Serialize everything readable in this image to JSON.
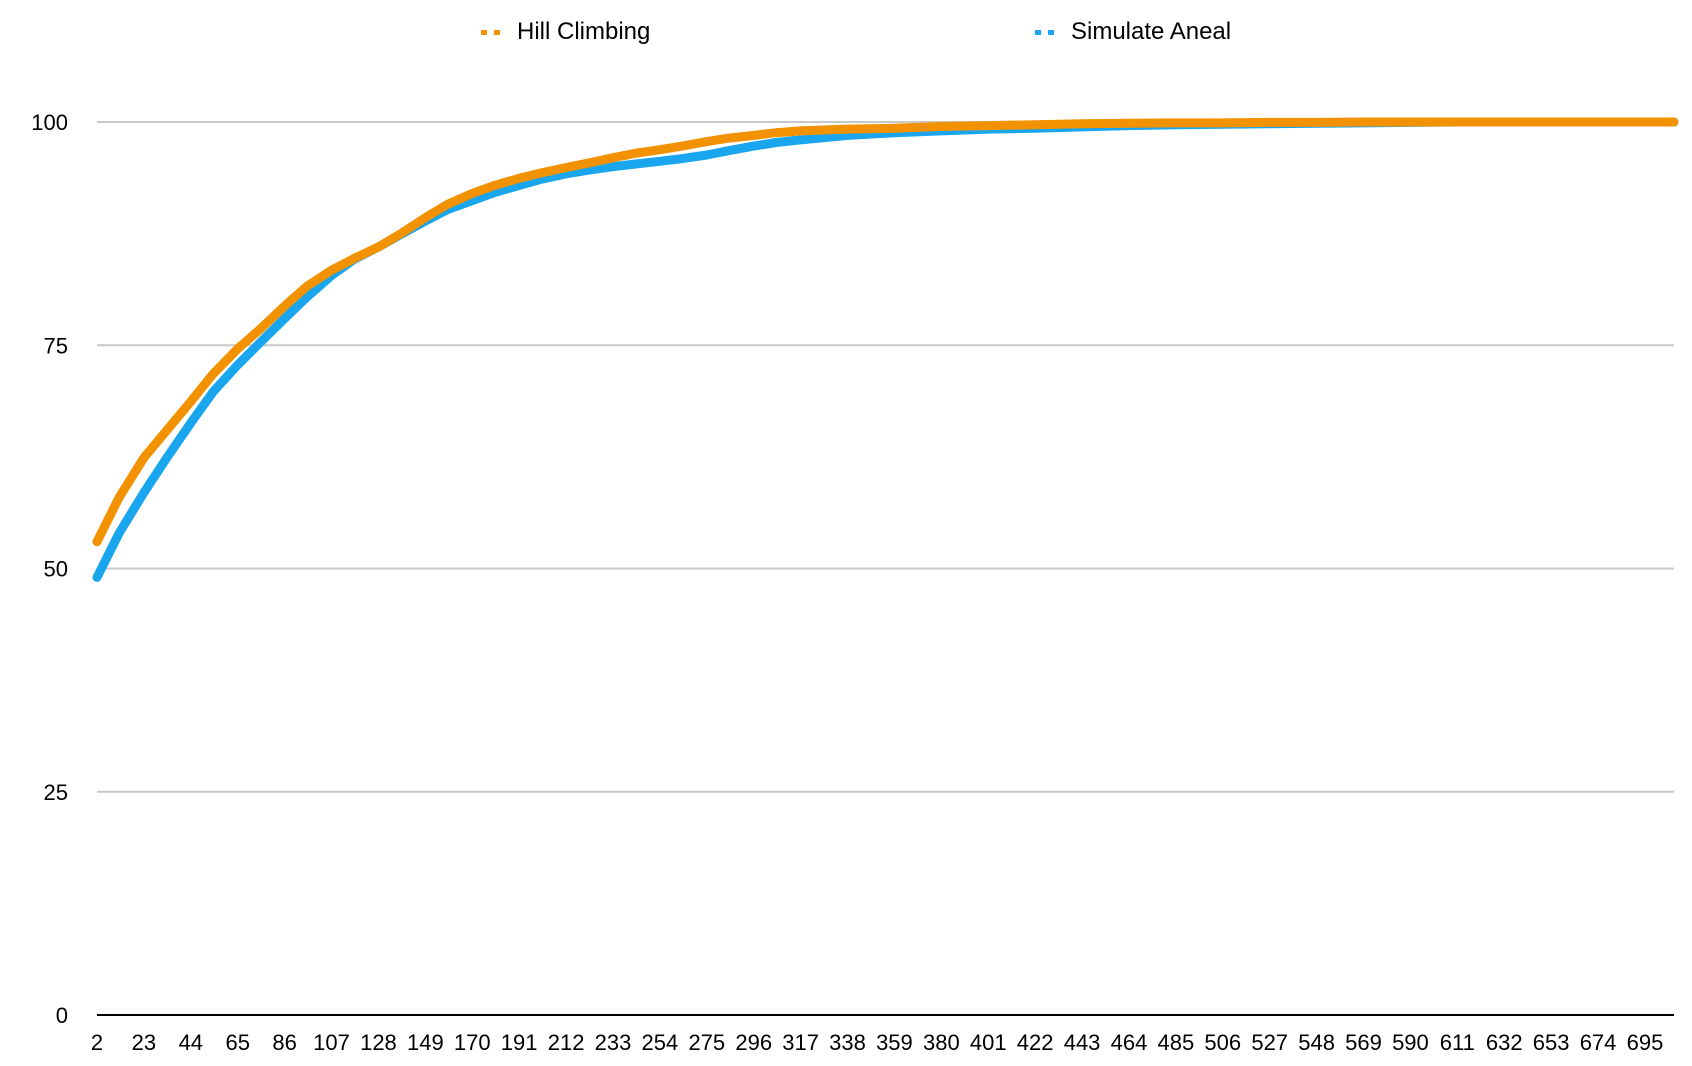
{
  "chart_data": {
    "type": "line",
    "title": "",
    "xlabel": "",
    "ylabel": "",
    "ylim": [
      0,
      100
    ],
    "y_ticks": [
      0,
      25,
      50,
      75,
      100
    ],
    "xlim": [
      2,
      708
    ],
    "x_ticks": [
      2,
      23,
      44,
      65,
      86,
      107,
      128,
      149,
      170,
      191,
      212,
      233,
      254,
      275,
      296,
      317,
      338,
      359,
      380,
      401,
      422,
      443,
      464,
      485,
      506,
      527,
      548,
      569,
      590,
      611,
      632,
      653,
      674,
      695
    ],
    "grid": true,
    "legend_position": "top",
    "series": [
      {
        "name": "Hill Climbing",
        "color": "#F39200",
        "x": [
          2,
          12,
          23,
          33,
          44,
          54,
          65,
          75,
          86,
          96,
          107,
          117,
          128,
          138,
          149,
          159,
          170,
          180,
          191,
          201,
          212,
          222,
          233,
          243,
          254,
          264,
          275,
          285,
          296,
          306,
          317,
          338,
          359,
          380,
          401,
          422,
          443,
          464,
          485,
          506,
          527,
          548,
          569,
          590,
          611,
          632,
          653,
          674,
          695,
          708
        ],
        "values": [
          53.0,
          58.0,
          62.4,
          65.4,
          68.7,
          71.8,
          74.6,
          76.8,
          79.4,
          81.6,
          83.4,
          84.7,
          86.0,
          87.5,
          89.3,
          90.8,
          92.0,
          92.9,
          93.7,
          94.3,
          94.9,
          95.4,
          96.0,
          96.5,
          96.9,
          97.3,
          97.8,
          98.2,
          98.5,
          98.8,
          99.0,
          99.2,
          99.3,
          99.5,
          99.6,
          99.7,
          99.8,
          99.85,
          99.9,
          99.9,
          99.95,
          99.95,
          100,
          100,
          100,
          100,
          100,
          100,
          100,
          100
        ]
      },
      {
        "name": "Simulate Aneal",
        "color": "#1AA6EE",
        "x": [
          2,
          12,
          23,
          33,
          44,
          54,
          65,
          75,
          86,
          96,
          107,
          117,
          128,
          138,
          149,
          159,
          170,
          180,
          191,
          201,
          212,
          222,
          233,
          243,
          254,
          264,
          275,
          285,
          296,
          306,
          317,
          338,
          359,
          380,
          401,
          422,
          443,
          464,
          485,
          506,
          527,
          548,
          569,
          590,
          611,
          632,
          653,
          674,
          695,
          708
        ],
        "values": [
          49.0,
          54.0,
          58.5,
          62.3,
          66.3,
          69.8,
          72.8,
          75.3,
          78.0,
          80.4,
          82.8,
          84.6,
          86.0,
          87.4,
          88.9,
          90.2,
          91.2,
          92.1,
          92.9,
          93.6,
          94.2,
          94.6,
          95.0,
          95.3,
          95.6,
          95.9,
          96.3,
          96.8,
          97.3,
          97.7,
          98.0,
          98.5,
          98.8,
          99.0,
          99.2,
          99.3,
          99.45,
          99.6,
          99.7,
          99.75,
          99.8,
          99.85,
          99.9,
          99.95,
          100,
          100,
          100,
          100,
          100,
          100
        ]
      }
    ]
  }
}
